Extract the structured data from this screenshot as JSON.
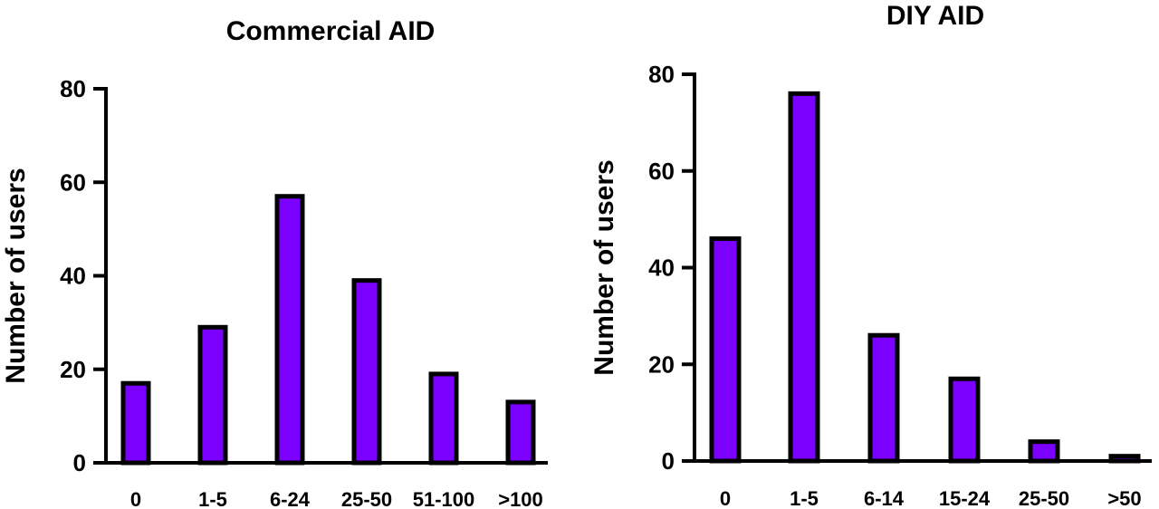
{
  "chart_data": [
    {
      "type": "bar",
      "title": "Commercial AID",
      "xlabel": "",
      "ylabel": "Number of users",
      "categories": [
        "0",
        "1-5",
        "6-24",
        "25-50",
        "51-100",
        ">100"
      ],
      "values": [
        17,
        29,
        57,
        39,
        19,
        13
      ],
      "ylim": [
        0,
        80
      ],
      "yticks": [
        "0",
        "20",
        "40",
        "60",
        "80"
      ],
      "grid": false,
      "legend": "none"
    },
    {
      "type": "bar",
      "title": "DIY AID",
      "xlabel": "",
      "ylabel": "Number of users",
      "categories": [
        "0",
        "1-5",
        "6-14",
        "15-24",
        "25-50",
        ">50"
      ],
      "values": [
        46,
        76,
        26,
        17,
        4,
        1
      ],
      "ylim": [
        0,
        80
      ],
      "yticks": [
        "0",
        "20",
        "40",
        "60",
        "80"
      ],
      "grid": false,
      "legend": "none"
    }
  ],
  "colors": {
    "bar_fill": "#7b00ff",
    "bar_outline": "#000000",
    "axis": "#000000"
  }
}
